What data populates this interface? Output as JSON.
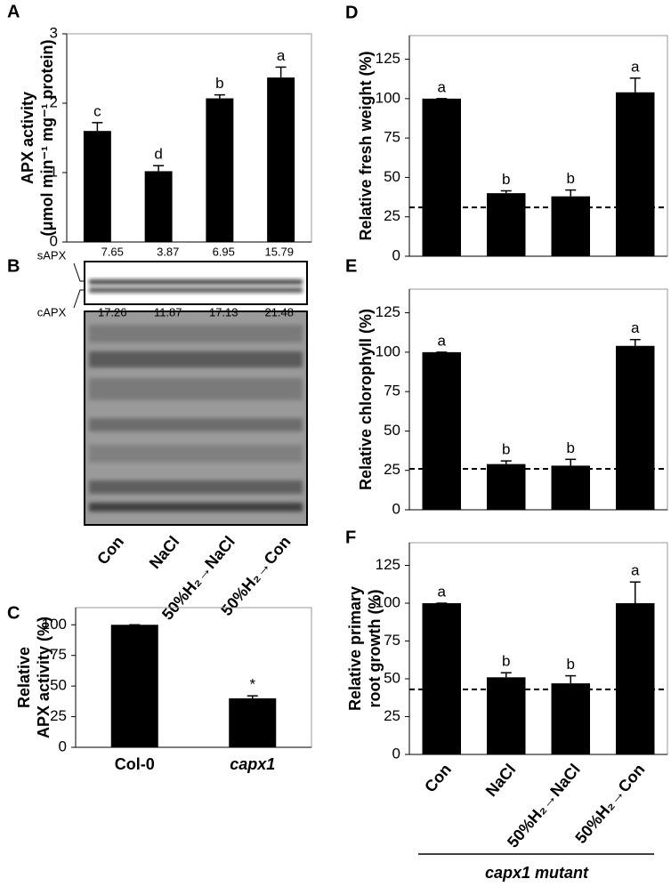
{
  "chart_data": [
    {
      "type": "bar",
      "panel": "A",
      "y_label": [
        "APX activity",
        "(μmol min⁻¹ mg⁻¹ protein)"
      ],
      "categories": [
        null,
        null,
        null,
        null
      ],
      "values": [
        1.6,
        1.02,
        2.07,
        2.37
      ],
      "errors": [
        0.12,
        0.08,
        0.05,
        0.15
      ],
      "letters": [
        "c",
        "d",
        "b",
        "a"
      ],
      "color": "#000000",
      "ylim": [
        0,
        3
      ],
      "yticks": [
        0,
        1,
        2,
        3
      ]
    },
    {
      "type": "blot",
      "panel": "B",
      "categories": [
        "Con",
        "NaCl",
        "50%H₂→NaCl",
        "50%H₂→Con"
      ],
      "series": [
        {
          "name": "sAPX",
          "values": [
            7.65,
            3.87,
            6.95,
            15.79
          ]
        },
        {
          "name": "cAPX",
          "values": [
            17.26,
            11.87,
            17.13,
            21.48
          ]
        }
      ]
    },
    {
      "type": "bar",
      "panel": "C",
      "y_label": [
        "Relative",
        "APX activity (%)"
      ],
      "categories": [
        "Col-0",
        "capx1"
      ],
      "values": [
        100,
        40
      ],
      "errors": [
        0,
        2
      ],
      "letters": [
        null,
        "*"
      ],
      "color": "#000000",
      "ylim": [
        0,
        114
      ],
      "yticks": [
        0,
        25,
        50,
        75,
        100
      ]
    },
    {
      "type": "bar",
      "panel": "D",
      "y_label": [
        "Relative fresh weight (%)"
      ],
      "categories": [
        null,
        null,
        null,
        null
      ],
      "values": [
        100,
        40,
        38,
        104
      ],
      "errors": [
        0,
        1.5,
        4,
        9
      ],
      "letters": [
        "a",
        "b",
        "b",
        "a"
      ],
      "reference_line": 31,
      "color": "#000000",
      "ylim": [
        0,
        140
      ],
      "yticks": [
        0,
        25,
        50,
        75,
        100,
        125
      ]
    },
    {
      "type": "bar",
      "panel": "E",
      "y_label": [
        "Relative chlorophyll (%)"
      ],
      "categories": [
        null,
        null,
        null,
        null
      ],
      "values": [
        100,
        29,
        28,
        104
      ],
      "errors": [
        0,
        2,
        4,
        4
      ],
      "letters": [
        "a",
        "b",
        "b",
        "a"
      ],
      "reference_line": 26,
      "color": "#000000",
      "ylim": [
        0,
        140
      ],
      "yticks": [
        0,
        25,
        50,
        75,
        100,
        125
      ]
    },
    {
      "type": "bar",
      "panel": "F",
      "y_label": [
        "Relative primary",
        "root growth (%)"
      ],
      "categories": [
        "Con",
        "NaCl",
        "50%H₂→NaCl",
        "50%H₂→Con"
      ],
      "values": [
        100,
        51,
        47,
        100
      ],
      "errors": [
        0,
        3,
        5,
        14
      ],
      "letters": [
        "a",
        "b",
        "b",
        "a"
      ],
      "reference_line": 43,
      "x_label": "capx1 mutant",
      "color": "#000000",
      "ylim": [
        0,
        140
      ],
      "yticks": [
        0,
        25,
        50,
        75,
        100,
        125
      ]
    }
  ]
}
